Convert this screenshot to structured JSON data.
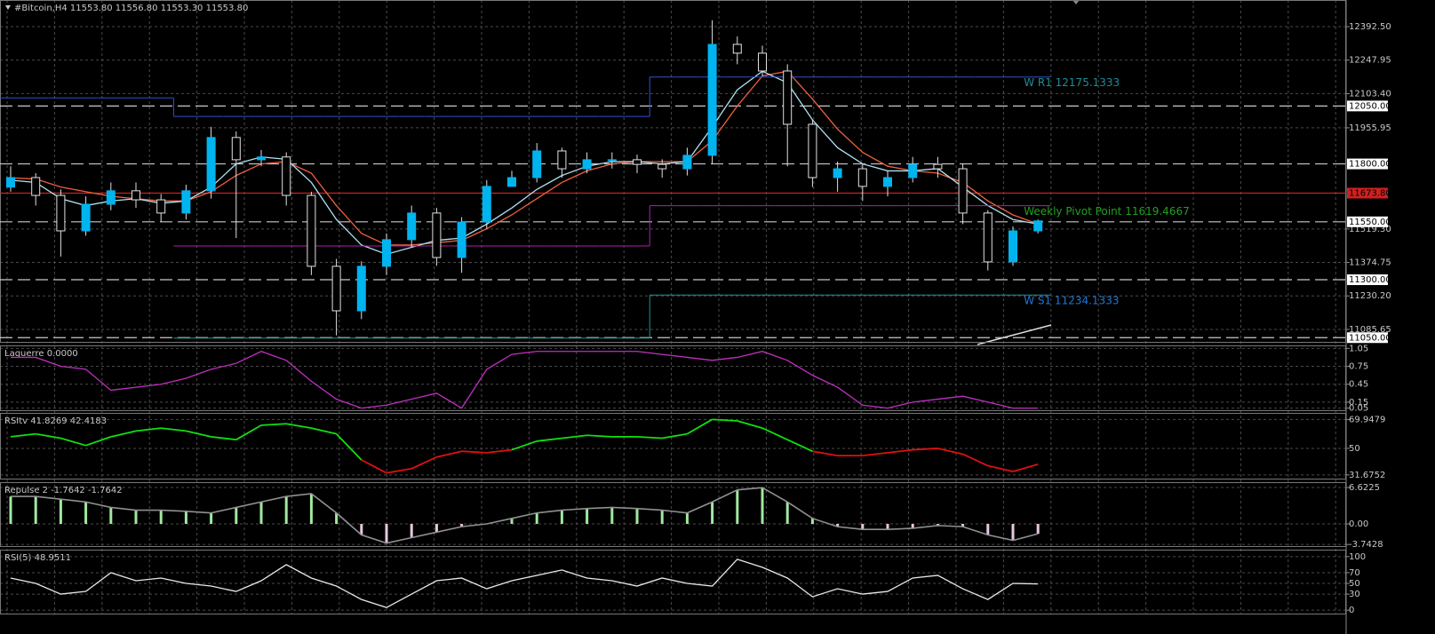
{
  "header": "#Bitcoin,H4  11553.80 11556.80 11553.30 11553.80",
  "chart_data": [
    {
      "type": "candlestick",
      "open": [
        11700,
        11741,
        11664,
        11511,
        11626,
        11684,
        11645,
        11588,
        11684,
        11914,
        11818,
        11830,
        11664,
        11358,
        11166,
        11358,
        11473,
        11588,
        11396,
        11549,
        11703,
        11741,
        11856,
        11779,
        11818,
        11818,
        11798,
        11779,
        11837,
        12316,
        12278,
        12201,
        11971,
        11741,
        11779,
        11703,
        11741,
        11798,
        11779,
        11588,
        11377,
        11511
      ],
      "high": [
        11790,
        11760,
        11690,
        11660,
        11720,
        11720,
        11670,
        11710,
        11960,
        11940,
        11860,
        11850,
        11680,
        11390,
        11380,
        11500,
        11620,
        11610,
        11570,
        11730,
        11770,
        11890,
        11870,
        11850,
        11850,
        11840,
        11820,
        11870,
        12420,
        12350,
        12310,
        12230,
        11990,
        11810,
        11800,
        11770,
        11830,
        11830,
        11800,
        11600,
        11530,
        11560
      ],
      "low": [
        11680,
        11620,
        11400,
        11490,
        11600,
        11610,
        11550,
        11560,
        11650,
        11480,
        11790,
        11620,
        11320,
        11060,
        11130,
        11320,
        11440,
        11360,
        11330,
        11520,
        11700,
        11720,
        11740,
        11760,
        11780,
        11760,
        11740,
        11750,
        11800,
        12230,
        12180,
        11790,
        11700,
        11680,
        11640,
        11660,
        11720,
        11740,
        11540,
        11340,
        11360,
        11500
      ],
      "close": [
        11741,
        11664,
        11511,
        11626,
        11684,
        11645,
        11588,
        11684,
        11914,
        11818,
        11830,
        11664,
        11358,
        11166,
        11358,
        11473,
        11588,
        11396,
        11549,
        11703,
        11741,
        11856,
        11779,
        11818,
        11818,
        11798,
        11779,
        11837,
        12316,
        12278,
        12201,
        11971,
        11741,
        11779,
        11703,
        11741,
        11798,
        11779,
        11588,
        11377,
        11511,
        11554
      ],
      "colors": {
        "up": "#00b4f0",
        "down": "#000000",
        "wick": "#e0e0e0"
      },
      "ylim": [
        11028,
        12507.5
      ],
      "yticks": [
        {
          "value": 12392.5,
          "label": "12392.50"
        },
        12247.95,
        {
          "value": 12103.4,
          "label": "12103.40"
        },
        11955.95,
        {
          "value": 11519.3,
          "label": "11519.30"
        },
        11374.75,
        {
          "value": 11230.2,
          "label": "11230.20"
        },
        11085.65
      ],
      "levels": [
        {
          "value": 12050,
          "label": "12050.00",
          "color": "#c8c8c8",
          "style": "dashed"
        },
        {
          "value": 11800,
          "label": "11800.00",
          "color": "#c8c8c8",
          "style": "dashed"
        },
        {
          "value": 11673.8,
          "label": "11673.80",
          "color": "#d02020",
          "style": "solid"
        },
        {
          "value": 11550,
          "label": "11550.00",
          "color": "#c8c8c8",
          "style": "dashed"
        },
        {
          "value": 11300,
          "label": "11300.00",
          "color": "#c8c8c8",
          "style": "dashed"
        },
        {
          "value": 11050,
          "label": "11050.00",
          "color": "#c8c8c8",
          "style": "dashed"
        }
      ],
      "series": [
        {
          "type": "line",
          "color": "#f06040",
          "values": [
            11740,
            11735,
            11700,
            11680,
            11660,
            11650,
            11640,
            11640,
            11680,
            11750,
            11800,
            11810,
            11760,
            11620,
            11500,
            11450,
            11450,
            11460,
            11470,
            11520,
            11580,
            11650,
            11720,
            11770,
            11800,
            11810,
            11810,
            11810,
            11900,
            12050,
            12180,
            12200,
            12080,
            11950,
            11850,
            11790,
            11770,
            11760,
            11720,
            11640,
            11580,
            11540
          ]
        },
        {
          "type": "line",
          "color": "#b0e0f0",
          "values": [
            11730,
            11720,
            11650,
            11620,
            11640,
            11650,
            11630,
            11640,
            11700,
            11800,
            11830,
            11820,
            11720,
            11560,
            11450,
            11410,
            11440,
            11470,
            11480,
            11540,
            11610,
            11690,
            11750,
            11790,
            11810,
            11810,
            11800,
            11810,
            11960,
            12120,
            12200,
            12150,
            11990,
            11870,
            11800,
            11770,
            11770,
            11780,
            11700,
            11620,
            11560,
            11540
          ]
        },
        {
          "type": "step",
          "color": "#3050d0",
          "label": "W R1  12175.1333",
          "label_color": "#1e8c96",
          "values": [
            12085,
            12085,
            12085,
            12085,
            12085,
            12085,
            12085,
            12005,
            12005,
            12005,
            12005,
            12005,
            12005,
            12005,
            12005,
            12005,
            12005,
            12005,
            12005,
            12005,
            12005,
            12005,
            12005,
            12005,
            12005,
            12005,
            12175.1333,
            12175.1333,
            12175.1333,
            12175.1333,
            12175.1333,
            12175.1333,
            12175.1333,
            12175.1333,
            12175.1333,
            12175.1333,
            12175.1333,
            12175.1333,
            12175.1333,
            12175.1333,
            12175.1333,
            12175.1333
          ]
        },
        {
          "type": "step",
          "color": "#b020b0",
          "label": "Weekly Pivot Point  11619.4667",
          "label_color": "#20a020",
          "values": [
            null,
            null,
            null,
            null,
            null,
            null,
            null,
            11446,
            11446,
            11446,
            11446,
            11446,
            11446,
            11446,
            11446,
            11446,
            11446,
            11446,
            11446,
            11446,
            11446,
            11446,
            11446,
            11446,
            11446,
            11446,
            11619.4667,
            11619.4667,
            11619.4667,
            11619.4667,
            11619.4667,
            11619.4667,
            11619.4667,
            11619.4667,
            11619.4667,
            11619.4667,
            11619.4667,
            11619.4667,
            11619.4667,
            11619.4667,
            11619.4667,
            11619.4667
          ]
        },
        {
          "type": "step",
          "color": "#1e9696",
          "label": "W S1  11234.1333",
          "label_color": "#1e78dc",
          "values": [
            null,
            null,
            null,
            null,
            null,
            null,
            null,
            11048,
            11048,
            11048,
            11048,
            11048,
            11048,
            11048,
            11048,
            11048,
            11048,
            11048,
            11048,
            11048,
            11048,
            11048,
            11048,
            11048,
            11048,
            11048,
            11234.1333,
            11234.1333,
            11234.1333,
            11234.1333,
            11234.1333,
            11234.1333,
            11234.1333,
            11234.1333,
            11234.1333,
            11234.1333,
            11234.1333,
            11234.1333,
            11234.1333,
            11234.1333,
            11234.1333,
            11234.1333
          ]
        }
      ]
    },
    {
      "type": "line",
      "title": "Laguerre 0.0000",
      "color": "#c030c0",
      "values": [
        0.9,
        0.9,
        0.75,
        0.7,
        0.35,
        0.4,
        0.45,
        0.55,
        0.7,
        0.8,
        1,
        0.85,
        0.5,
        0.2,
        0.05,
        0.1,
        0.2,
        0.3,
        0.05,
        0.7,
        0.95,
        1,
        1,
        1,
        1,
        1,
        0.95,
        0.9,
        0.85,
        0.9,
        1,
        0.85,
        0.6,
        0.4,
        0.1,
        0.05,
        0.15,
        0.2,
        0.25,
        0.15,
        0.05,
        0.05
      ],
      "ylim": [
        0,
        1.1
      ],
      "yticks": [
        1.05,
        0.75,
        0.45,
        0.15,
        0.05
      ]
    },
    {
      "type": "colorline",
      "title": "RSItv 41.8269 42.4183",
      "colors": {
        "above": "#10e010",
        "below": "#e01010"
      },
      "values": [
        58,
        60,
        57,
        52,
        58,
        62,
        64,
        62,
        58,
        56,
        66,
        67,
        64,
        60,
        42,
        33,
        36,
        44,
        48,
        47,
        49,
        55,
        57,
        59,
        58,
        58,
        57,
        60,
        70,
        69,
        64,
        56,
        48,
        45,
        45,
        47,
        49,
        50,
        46,
        38,
        34,
        39
      ],
      "ylim": [
        28.5,
        74.5
      ],
      "yticks": [
        69.9479,
        50,
        31.6752
      ]
    },
    {
      "type": "histogram",
      "title": "Repulse 2 -1.7642 -1.7642",
      "colors": {
        "up": "#a0e8a0",
        "down": "#e8c8e0",
        "line": "#909090"
      },
      "values": [
        5,
        5,
        4.5,
        4,
        3,
        2.5,
        2.5,
        2.3,
        2,
        3,
        4,
        5,
        5.5,
        2,
        -2,
        -3.5,
        -2.5,
        -1.5,
        -0.5,
        0,
        1,
        2,
        2.5,
        2.8,
        3,
        2.8,
        2.5,
        2,
        4,
        6.2,
        6.6,
        4,
        1,
        -0.5,
        -1,
        -1,
        -0.8,
        -0.3,
        -0.5,
        -2,
        -3,
        -1.8
      ],
      "ylim": [
        -4.2,
        7.6
      ],
      "yticks": [
        6.6225,
        {
          "value": 0,
          "label": "0.00"
        },
        -3.7428
      ]
    },
    {
      "type": "line",
      "title": "RSI(5) 48.9511",
      "color": "#e8e8e8",
      "values": [
        60,
        50,
        30,
        35,
        70,
        55,
        60,
        50,
        45,
        35,
        55,
        85,
        60,
        45,
        20,
        5,
        30,
        55,
        60,
        40,
        55,
        65,
        75,
        60,
        55,
        45,
        60,
        50,
        45,
        95,
        80,
        60,
        25,
        40,
        30,
        35,
        60,
        65,
        40,
        20,
        50,
        49
      ],
      "ylim": [
        -8,
        113
      ],
      "yticks": [
        100,
        70,
        50,
        30,
        0
      ]
    }
  ]
}
